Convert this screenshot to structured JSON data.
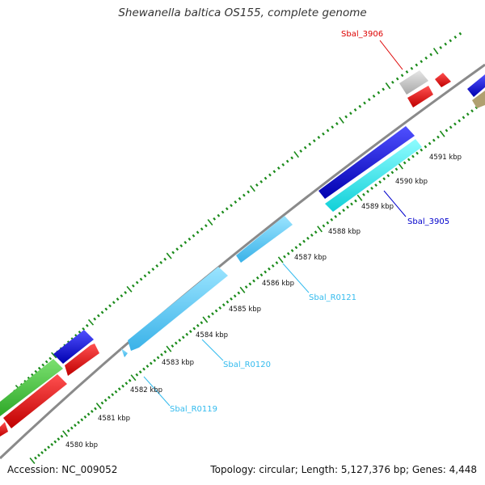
{
  "title": "Shewanella baltica OS155, complete genome",
  "footer": {
    "accession": "Accession: NC_009052",
    "summary": "Topology: circular; Length: 5,127,376 bp; Genes: 4,448"
  },
  "colors": {
    "ruler_ticks": "#1a8a1a",
    "backbone": "#8a8a8a",
    "rRNA": "#55ccf2",
    "tRNA": "#22d0d8",
    "gene_blue": "#1010e0",
    "gene_red": "#ee1111",
    "gene_green": "#44c83c",
    "gene_grey": "#c8c8c8",
    "gene_olive": "#b0a070",
    "label_red": "#dd0000",
    "label_blue": "#0000cc",
    "label_cyan": "#33bbee"
  },
  "ruler_labels": [
    "4580 kbp",
    "4581 kbp",
    "4582 kbp",
    "4583 kbp",
    "4584 kbp",
    "4585 kbp",
    "4586 kbp",
    "4587 kbp",
    "4588 kbp",
    "4589 kbp",
    "4590 kbp",
    "4591 kbp"
  ],
  "features": [
    {
      "label": "Sbal_3906",
      "color": "label_red"
    },
    {
      "label": "Sbal_3905",
      "color": "label_blue"
    },
    {
      "label": "Sbal_R0121",
      "color": "label_cyan"
    },
    {
      "label": "Sbal_R0120",
      "color": "label_cyan"
    },
    {
      "label": "Sbal_R0119",
      "color": "label_cyan"
    }
  ]
}
